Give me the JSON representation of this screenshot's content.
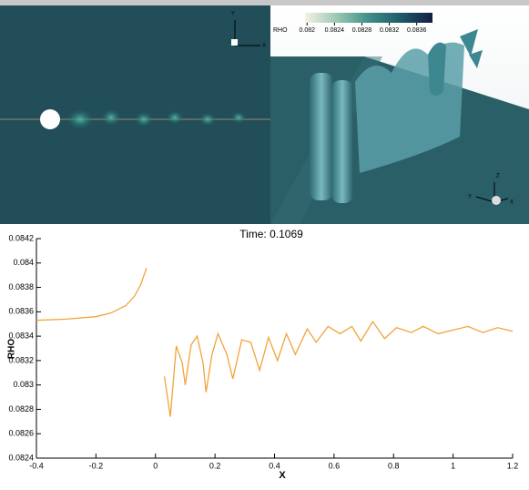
{
  "chart_data": {
    "type": "line",
    "title": "Time: 0.1069",
    "xlabel": "X",
    "ylabel": "RHO",
    "x": [
      -0.4,
      -0.3,
      -0.2,
      -0.15,
      -0.1,
      -0.07,
      -0.05,
      -0.03,
      0,
      0.03,
      0.05,
      0.07,
      0.09,
      0.1,
      0.12,
      0.14,
      0.16,
      0.17,
      0.19,
      0.21,
      0.24,
      0.26,
      0.29,
      0.32,
      0.35,
      0.38,
      0.41,
      0.44,
      0.47,
      0.51,
      0.54,
      0.58,
      0.62,
      0.66,
      0.69,
      0.73,
      0.77,
      0.81,
      0.86,
      0.9,
      0.95,
      1.0,
      1.05,
      1.1,
      1.15,
      1.2
    ],
    "values": [
      0.08353,
      0.08354,
      0.08356,
      0.08359,
      0.08365,
      0.08373,
      0.08382,
      0.08396,
      null,
      0.08307,
      0.08274,
      0.08332,
      0.08318,
      0.083,
      0.08333,
      0.0834,
      0.08318,
      0.08294,
      0.08325,
      0.08342,
      0.08325,
      0.08305,
      0.08337,
      0.08335,
      0.08312,
      0.08339,
      0.0832,
      0.08342,
      0.08325,
      0.08346,
      0.08335,
      0.08348,
      0.08342,
      0.08348,
      0.08336,
      0.08352,
      0.08338,
      0.08347,
      0.08343,
      0.08348,
      0.08342,
      0.08345,
      0.08348,
      0.08343,
      0.08347,
      0.08344
    ],
    "color": "#f2a33a",
    "xlim": [
      -0.4,
      1.2
    ],
    "xticks": [
      -0.4,
      -0.2,
      0,
      0.2,
      0.4,
      0.6,
      0.8,
      1,
      1.2
    ],
    "ylim": [
      0.0824,
      0.0842
    ],
    "yticks": [
      0.0824,
      0.0826,
      0.0828,
      0.083,
      0.0832,
      0.0834,
      0.0836,
      0.0838,
      0.084,
      0.0842
    ]
  },
  "colorbar": {
    "title": "RHO",
    "lim": [
      0.08197,
      0.08383
    ],
    "ticks": [
      0.082,
      0.0824,
      0.0828,
      0.0832,
      0.0836
    ],
    "colors": [
      "#f4f1e6",
      "#9cc7b3",
      "#3e8f8a",
      "#1f5a6a",
      "#131d45"
    ]
  },
  "views": {
    "slice_axes": [
      "Y",
      "X"
    ],
    "iso_axes": [
      "Z",
      "Y",
      "X"
    ]
  }
}
